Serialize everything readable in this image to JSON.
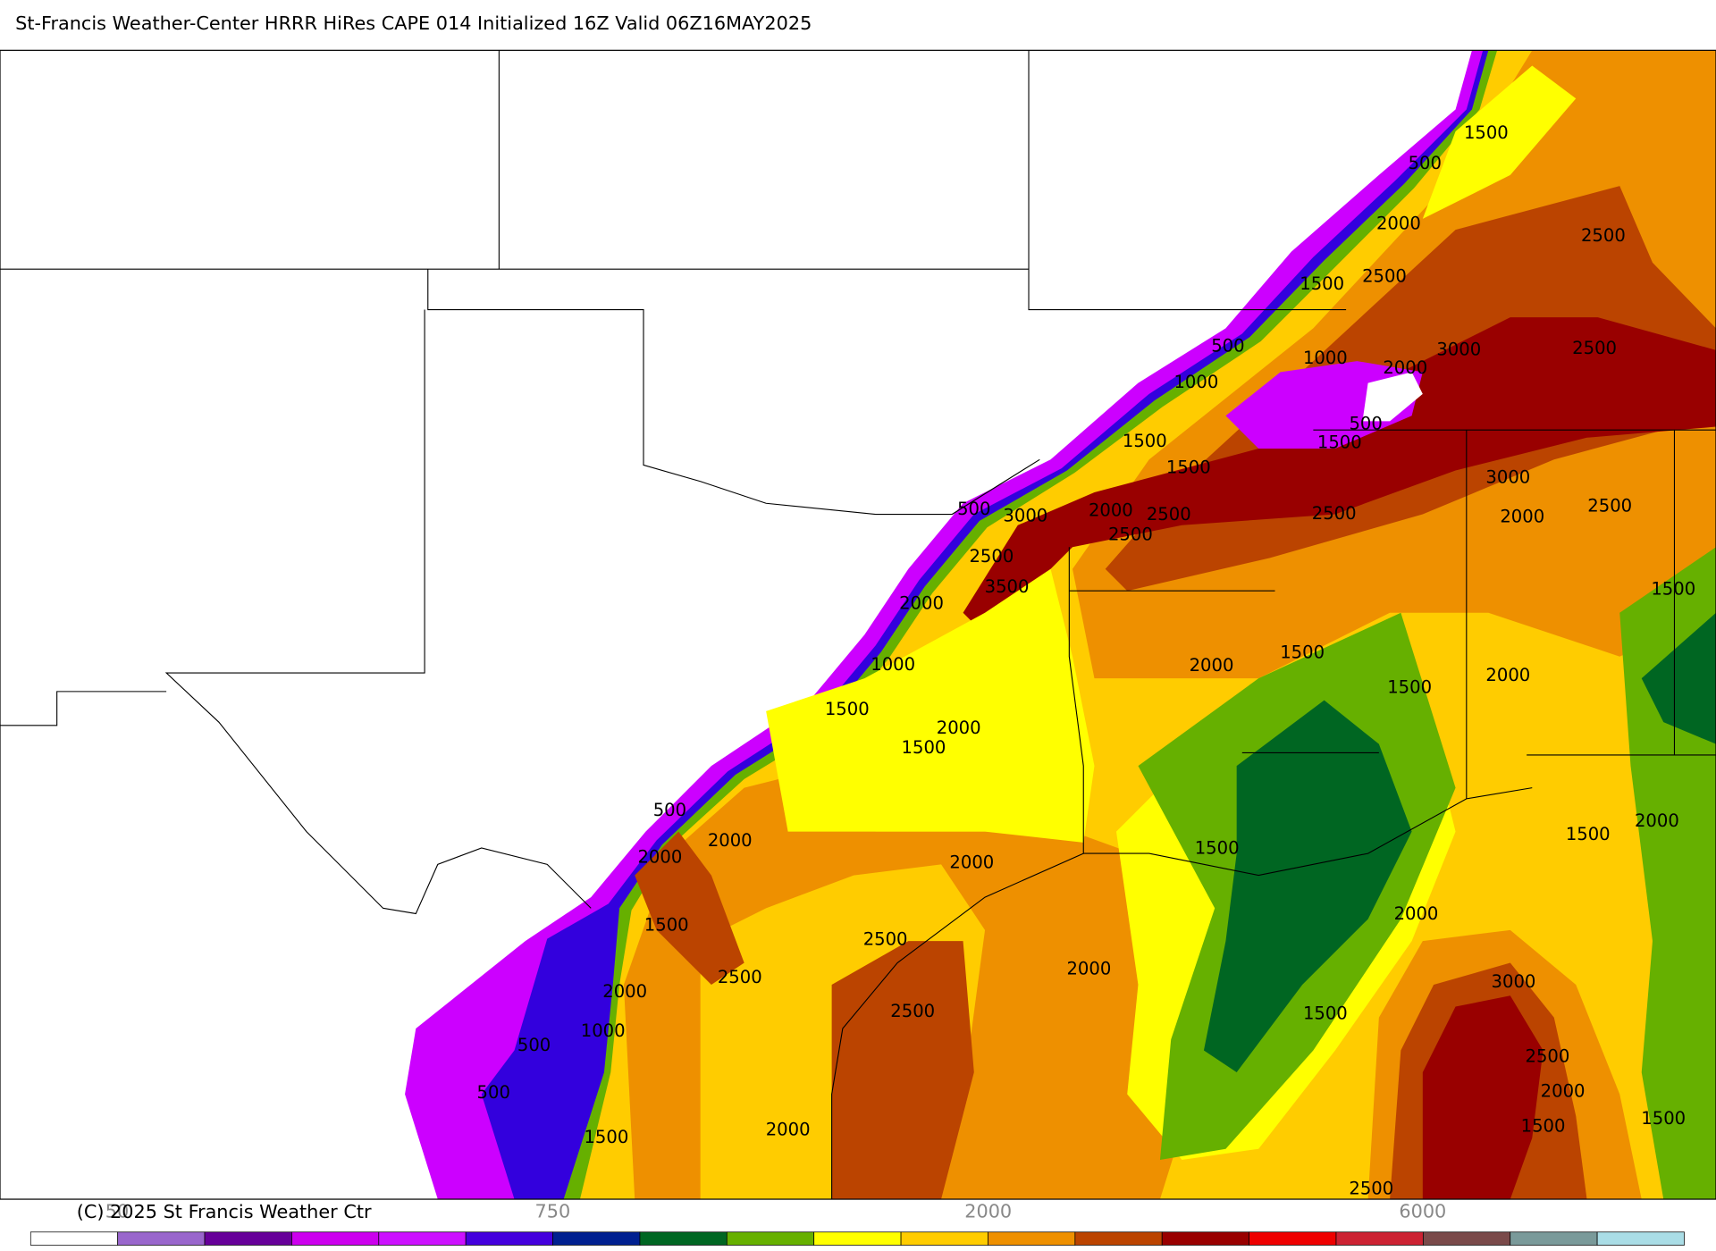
{
  "header": {
    "title": "St-Francis Weather-Center HRRR HiRes CAPE  014 Initialized  16Z Valid 06Z16MAY2025"
  },
  "contour_labels": [
    1500,
    500,
    2000,
    2500,
    2500,
    1500,
    500,
    1000,
    3000,
    2500,
    2000,
    1000,
    500,
    1500,
    1500,
    1500,
    3000,
    500,
    3000,
    2000,
    2500,
    2500,
    2000,
    2500,
    2500,
    2500,
    3500,
    1500,
    2000,
    1000,
    2000,
    1500,
    1500,
    2000,
    1500,
    2000,
    1500,
    500,
    2000,
    2000,
    2000,
    1500,
    1500,
    2000,
    1500,
    2500,
    2500,
    2000,
    2000,
    3000,
    2000,
    1000,
    2500,
    1500,
    500,
    2500,
    2000,
    500,
    1500,
    1500,
    2000,
    1500,
    2500
  ],
  "colorbar": {
    "colors": [
      "#ffffff",
      "#9966cc",
      "#660099",
      "#cc00ee",
      "#cc11ff",
      "#4400dd",
      "#002090",
      "#006622",
      "#66b000",
      "#ffff00",
      "#ffcc00",
      "#ee9000",
      "#bb4400",
      "#990000",
      "#ee0000",
      "#cc2233",
      "#7a4a4a",
      "#7a9a9a",
      "#aadde6"
    ],
    "labels": [
      50,
      750,
      2000,
      6000
    ]
  },
  "footer": {
    "copyright": "(C) 2025 St Francis Weather Ctr"
  }
}
